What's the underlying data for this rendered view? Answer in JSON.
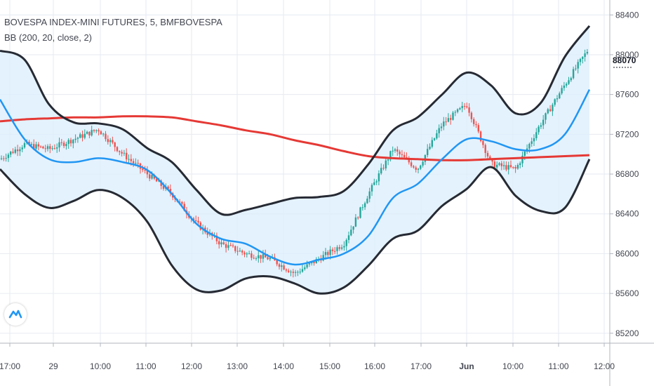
{
  "header": {
    "title": "BOVESPA INDEX-MINI FUTURES, 5, BMFBOVESPA",
    "indicator": "BB (200, 20, close, 2)"
  },
  "price_tag": "88070",
  "colors": {
    "up": "#26a69a",
    "down": "#ef5350",
    "band_outline": "#262a33",
    "band_fill": "#dbeefc",
    "basis": "#2196f3",
    "ma200": "#e53935",
    "grid": "#e6eaf0"
  },
  "logo_icon": "tradingview-logo-icon",
  "chart_data": {
    "type": "line",
    "title": "BOVESPA INDEX-MINI FUTURES, 5, BMFBOVESPA",
    "ylim": [
      85100,
      88550
    ],
    "grid": true,
    "y_ticks": [
      85200,
      85600,
      86000,
      86400,
      86800,
      87200,
      87600,
      88000,
      88400
    ],
    "x_ticks": [
      "17:00",
      "29",
      "10:00",
      "11:00",
      "12:00",
      "13:00",
      "14:00",
      "15:00",
      "16:00",
      "17:00",
      "Jun",
      "10:00",
      "11:00",
      "12:00"
    ],
    "x": [
      0,
      35,
      70,
      105,
      140,
      175,
      210,
      245,
      280,
      315,
      350,
      385,
      420,
      455,
      490,
      525,
      560,
      595,
      630,
      665,
      700,
      735,
      770,
      805,
      840
    ],
    "series": [
      {
        "name": "Upper",
        "values": [
          88040,
          87950,
          87500,
          87320,
          87310,
          87250,
          87060,
          86920,
          86640,
          86400,
          86440,
          86500,
          86560,
          86570,
          86630,
          86900,
          87240,
          87370,
          87600,
          87820,
          87690,
          87410,
          87510,
          87980,
          88290
        ]
      },
      {
        "name": "Basis",
        "values": [
          87550,
          87150,
          86950,
          86920,
          86960,
          86920,
          86840,
          86600,
          86300,
          86150,
          86100,
          85970,
          85890,
          85940,
          86000,
          86180,
          86560,
          86700,
          86950,
          87150,
          87130,
          87050,
          87050,
          87200,
          87650
        ]
      },
      {
        "name": "Lower",
        "values": [
          86850,
          86600,
          86460,
          86530,
          86640,
          86560,
          86320,
          85880,
          85640,
          85630,
          85750,
          85770,
          85700,
          85600,
          85660,
          85880,
          86150,
          86230,
          86480,
          86650,
          86870,
          86580,
          86430,
          86460,
          86950
        ]
      },
      {
        "name": "MA200",
        "values": [
          87330,
          87350,
          87360,
          87370,
          87370,
          87380,
          87380,
          87370,
          87330,
          87290,
          87240,
          87200,
          87140,
          87090,
          87030,
          86980,
          86960,
          86950,
          86940,
          86940,
          86950,
          86960,
          86970,
          86980,
          86990
        ]
      },
      {
        "name": "Close",
        "values": [
          86950,
          87100,
          87050,
          87150,
          87250,
          87000,
          86800,
          86600,
          86300,
          86100,
          86000,
          85950,
          85800,
          85950,
          86100,
          86600,
          87050,
          86850,
          87300,
          87500,
          86900,
          86850,
          87300,
          87700,
          88070
        ]
      }
    ]
  }
}
